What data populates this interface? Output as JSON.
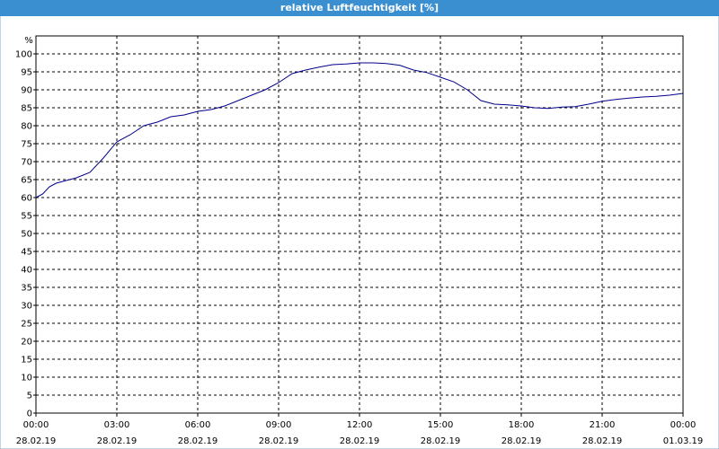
{
  "chart_data": {
    "type": "line",
    "title": "relative Luftfeuchtigkeit [%]",
    "y_label": "%",
    "x": [
      0,
      0.25,
      0.5,
      0.75,
      1,
      1.5,
      2,
      2.5,
      3,
      3.5,
      4,
      4.5,
      5,
      5.5,
      6,
      6.5,
      7,
      7.5,
      8,
      8.5,
      9,
      9.5,
      10,
      10.5,
      11,
      11.5,
      12,
      12.5,
      13,
      13.5,
      14,
      14.5,
      15,
      15.5,
      16,
      16.5,
      17,
      17.5,
      18,
      18.5,
      19,
      19.5,
      20,
      20.5,
      21,
      21.5,
      22,
      22.5,
      23,
      23.5,
      24
    ],
    "series": [
      {
        "name": "relative Luftfeuchtigkeit",
        "color": "#00008b",
        "values": [
          60,
          61,
          63,
          64,
          64.5,
          65.5,
          67,
          71,
          75.5,
          77.5,
          80,
          81,
          82.5,
          83,
          84,
          84.5,
          85.5,
          87,
          88.5,
          90,
          92,
          94.5,
          95.5,
          96.3,
          97,
          97.2,
          97.5,
          97.5,
          97.3,
          96.8,
          95.5,
          94.8,
          93.5,
          92.2,
          90,
          87,
          86,
          85.8,
          85.5,
          85,
          84.8,
          85.2,
          85.3,
          86,
          86.8,
          87.3,
          87.7,
          88,
          88.2,
          88.5,
          89
        ]
      }
    ],
    "xlim": [
      0,
      24
    ],
    "xticks": [
      {
        "value": 0,
        "label": "00:00\n28.02.19"
      },
      {
        "value": 3,
        "label": "03:00\n28.02.19"
      },
      {
        "value": 6,
        "label": "06:00\n28.02.19"
      },
      {
        "value": 9,
        "label": "09:00\n28.02.19"
      },
      {
        "value": 12,
        "label": "12:00\n28.02.19"
      },
      {
        "value": 15,
        "label": "15:00\n28.02.19"
      },
      {
        "value": 18,
        "label": "18:00\n28.02.19"
      },
      {
        "value": 21,
        "label": "21:00\n28.02.19"
      },
      {
        "value": 24,
        "label": "00:00\n01.03.19"
      }
    ],
    "ylim": [
      0,
      105
    ],
    "yticks": [
      0,
      5,
      10,
      15,
      20,
      25,
      30,
      35,
      40,
      45,
      50,
      55,
      60,
      65,
      70,
      75,
      80,
      85,
      90,
      95,
      100
    ],
    "grid": true
  }
}
